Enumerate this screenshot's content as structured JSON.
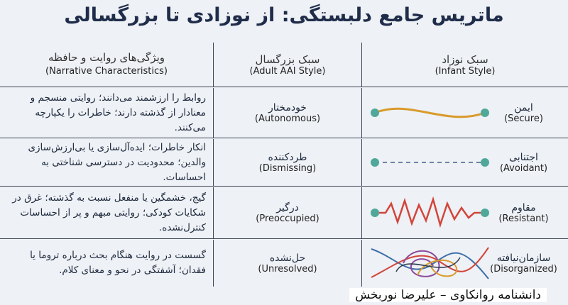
{
  "title": "ماتریس جامع دلبستگی: از نوزادی تا بزرگسالی",
  "table": {
    "header": {
      "infant": {
        "fa": "سبک نوزاد",
        "en": "(Infant Style)"
      },
      "adult": {
        "fa": "سبک بزرگسال",
        "en": "(Adult AAI Style)"
      },
      "narrative": {
        "fa": "ویژگی‌های روایت و حافظه",
        "en": "(Narrative Characteristics)"
      }
    },
    "rows": [
      {
        "infant": {
          "fa": "ایمن",
          "en": "(Secure)"
        },
        "adult": {
          "fa": "خودمختار",
          "en": "(Autonomous)"
        },
        "narrative": "روابط را ارزشمند می‌دانند؛ روایتی منسجم و معنادار از گذشته دارند؛ خاطرات را یکپارچه می‌کنند."
      },
      {
        "infant": {
          "fa": "اجتنابی",
          "en": "(Avoidant)"
        },
        "adult": {
          "fa": "طردکننده",
          "en": "(Dismissing)"
        },
        "narrative": "انکار خاطرات؛ ایده‌آل‌سازی یا بی‌ارزش‌سازی والدین؛ محدودیت در دسترسی شناختی به احساسات."
      },
      {
        "infant": {
          "fa": "مقاوم",
          "en": "(Resistant)"
        },
        "adult": {
          "fa": "درگیر",
          "en": "(Preoccupied)"
        },
        "narrative": "گیج، خشمگین یا منفعل نسبت به گذشته؛ غرق در شکایات کودکی؛ روایتی مبهم و پر از احساسات کنترل‌نشده."
      },
      {
        "infant": {
          "fa": "سازمان‌نیافته",
          "en": "(Disorganized)"
        },
        "adult": {
          "fa": "حل‌نشده",
          "en": "(Unresolved)"
        },
        "narrative": "گسست در روایت هنگام بحث درباره تروما یا فقدان؛ آشفتگی در نحو و معنای کلام."
      }
    ]
  },
  "footer": "دانشنامه روانکاوی – علیرضا نوربخش"
}
